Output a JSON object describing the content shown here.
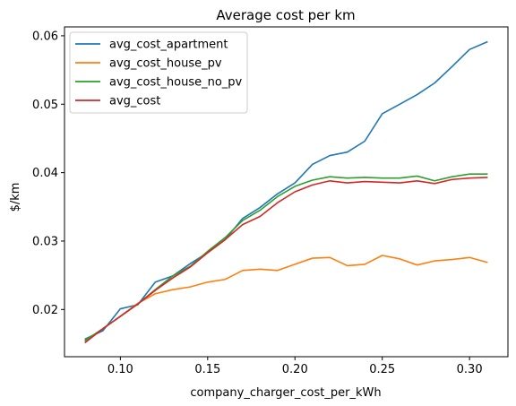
{
  "chart_data": {
    "type": "line",
    "title": "Average cost per km",
    "xlabel": "company_charger_cost_per_kWh",
    "ylabel": "$/km",
    "xlim": [
      0.068,
      0.322
    ],
    "ylim": [
      0.0131,
      0.0613
    ],
    "xticks": [
      0.1,
      0.15,
      0.2,
      0.25,
      0.3
    ],
    "xtick_labels": [
      "0.10",
      "0.15",
      "0.20",
      "0.25",
      "0.30"
    ],
    "yticks": [
      0.02,
      0.03,
      0.04,
      0.05,
      0.06
    ],
    "ytick_labels": [
      "0.02",
      "0.03",
      "0.04",
      "0.05",
      "0.06"
    ],
    "grid": false,
    "legend_position": "top-left",
    "x": [
      0.08,
      0.09,
      0.1,
      0.11,
      0.12,
      0.13,
      0.14,
      0.15,
      0.16,
      0.17,
      0.18,
      0.19,
      0.2,
      0.21,
      0.22,
      0.23,
      0.24,
      0.25,
      0.26,
      0.27,
      0.28,
      0.29,
      0.3,
      0.31
    ],
    "series": [
      {
        "name": "avg_cost_apartment",
        "color": "#1f77b4",
        "values": [
          0.0157,
          0.0169,
          0.0201,
          0.0207,
          0.024,
          0.0249,
          0.0267,
          0.0283,
          0.0302,
          0.0333,
          0.0349,
          0.0369,
          0.0385,
          0.0412,
          0.0425,
          0.043,
          0.0446,
          0.0486,
          0.05,
          0.0514,
          0.0531,
          0.0555,
          0.058,
          0.0591
        ]
      },
      {
        "name": "avg_cost_house_pv",
        "color": "#ff7f0e",
        "values": [
          0.0154,
          0.0172,
          0.019,
          0.0209,
          0.0223,
          0.0229,
          0.0233,
          0.024,
          0.0244,
          0.0257,
          0.0259,
          0.0257,
          0.0266,
          0.0275,
          0.0276,
          0.0264,
          0.0266,
          0.0279,
          0.0274,
          0.0265,
          0.0271,
          0.0273,
          0.0276,
          0.0269
        ]
      },
      {
        "name": "avg_cost_house_no_pv",
        "color": "#2ca02c",
        "values": [
          0.0155,
          0.0172,
          0.019,
          0.0208,
          0.0229,
          0.0249,
          0.0263,
          0.0285,
          0.0305,
          0.033,
          0.0345,
          0.0365,
          0.038,
          0.0389,
          0.0394,
          0.0392,
          0.0393,
          0.0392,
          0.0392,
          0.0395,
          0.0388,
          0.0394,
          0.0398,
          0.0398
        ]
      },
      {
        "name": "avg_cost",
        "color": "#d62728",
        "values": [
          0.0152,
          0.0172,
          0.019,
          0.0208,
          0.0228,
          0.0246,
          0.0262,
          0.0283,
          0.0302,
          0.0324,
          0.0336,
          0.0356,
          0.0372,
          0.0382,
          0.0388,
          0.0385,
          0.0387,
          0.0386,
          0.0385,
          0.0388,
          0.0384,
          0.039,
          0.0392,
          0.0393
        ]
      }
    ]
  }
}
